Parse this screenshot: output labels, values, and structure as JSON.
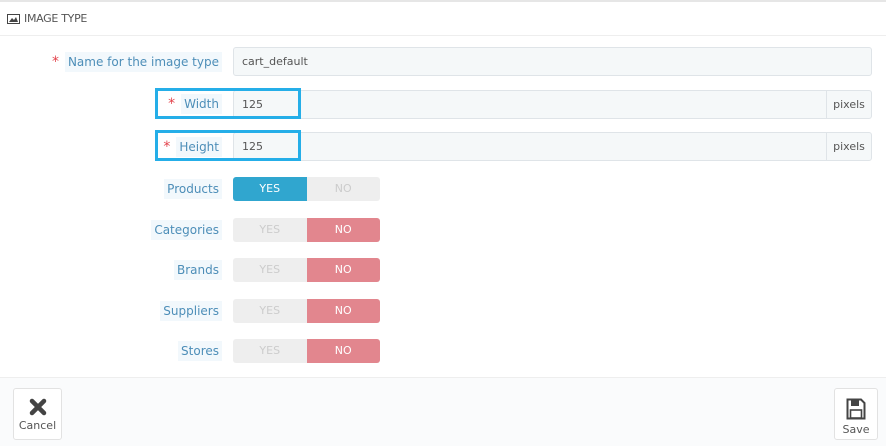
{
  "header": {
    "title": "IMAGE TYPE",
    "icon": "image-icon"
  },
  "fields": {
    "name": {
      "label": "Name for the image type",
      "value": "cart_default",
      "required": true
    },
    "width": {
      "label": "Width",
      "value": "125",
      "unit": "pixels",
      "required": true
    },
    "height": {
      "label": "Height",
      "value": "125",
      "unit": "pixels",
      "required": true
    }
  },
  "toggles": [
    {
      "label": "Products",
      "yes": "YES",
      "no": "NO",
      "value": "yes"
    },
    {
      "label": "Categories",
      "yes": "YES",
      "no": "NO",
      "value": "no"
    },
    {
      "label": "Brands",
      "yes": "YES",
      "no": "NO",
      "value": "no"
    },
    {
      "label": "Suppliers",
      "yes": "YES",
      "no": "NO",
      "value": "no"
    },
    {
      "label": "Stores",
      "yes": "YES",
      "no": "NO",
      "value": "no"
    }
  ],
  "footer": {
    "cancel": "Cancel",
    "save": "Save"
  },
  "colors": {
    "highlight": "#25aee8",
    "yes_active": "#30a6cf",
    "no_active": "#e2868e"
  }
}
